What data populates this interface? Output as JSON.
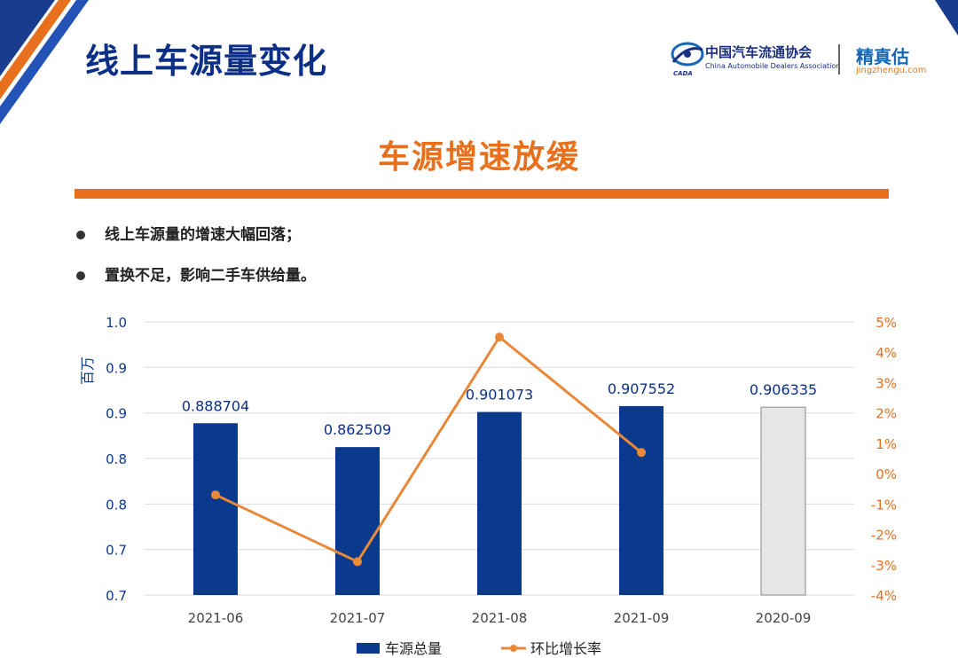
{
  "header": {
    "page_title": "线上车源量变化",
    "association_name": "中国汽车流通协会",
    "association_name_en": "China Automobile Dealers Association",
    "association_abbr": "CADA",
    "brand_name": "精真估",
    "brand_url": "jingzhengu.com"
  },
  "section": {
    "heading": "车源增速放缓",
    "bullets": [
      "线上车源量的增速大幅回落；",
      "置换不足，影响二手车供给量。"
    ]
  },
  "colors": {
    "title_blue": "#0b2f86",
    "accent_orange": "#e8701c",
    "bar_blue": "#0b3a8c",
    "bar_gray": "#e6e6e6",
    "line_orange": "#e98838"
  },
  "chart_data": {
    "type": "bar",
    "categories": [
      "2021-06",
      "2021-07",
      "2021-08",
      "2021-09",
      "2020-09"
    ],
    "series": [
      {
        "name": "车源总量",
        "type": "bar",
        "axis": "left",
        "values": [
          0.888704,
          0.862509,
          0.901073,
          0.907552,
          0.906335
        ],
        "labels": [
          "0.888704",
          "0.862509",
          "0.901073",
          "0.907552",
          "0.906335"
        ],
        "colors": [
          "#0b3a8c",
          "#0b3a8c",
          "#0b3a8c",
          "#0b3a8c",
          "#e6e6e6"
        ]
      },
      {
        "name": "环比增长率",
        "type": "line",
        "axis": "right",
        "values": [
          -0.7,
          -2.9,
          4.5,
          0.7,
          null
        ]
      }
    ],
    "ylabel": "百万",
    "ylim": [
      0.7,
      1.0
    ],
    "y_ticks": [
      1.0,
      0.95,
      0.9,
      0.85,
      0.8,
      0.75,
      0.7
    ],
    "y_tick_labels": [
      "1.0",
      "0.9",
      "0.9",
      "0.8",
      "0.8",
      "0.7",
      "0.7"
    ],
    "y2lim": [
      -4,
      5
    ],
    "y2_ticks": [
      5,
      4,
      3,
      2,
      1,
      0,
      -1,
      -2,
      -3,
      -4
    ],
    "y2_tick_labels": [
      "5%",
      "4%",
      "3%",
      "2%",
      "1%",
      "0%",
      "-1%",
      "-2%",
      "-3%",
      "-4%"
    ],
    "grid": true,
    "legend": "bottom"
  }
}
